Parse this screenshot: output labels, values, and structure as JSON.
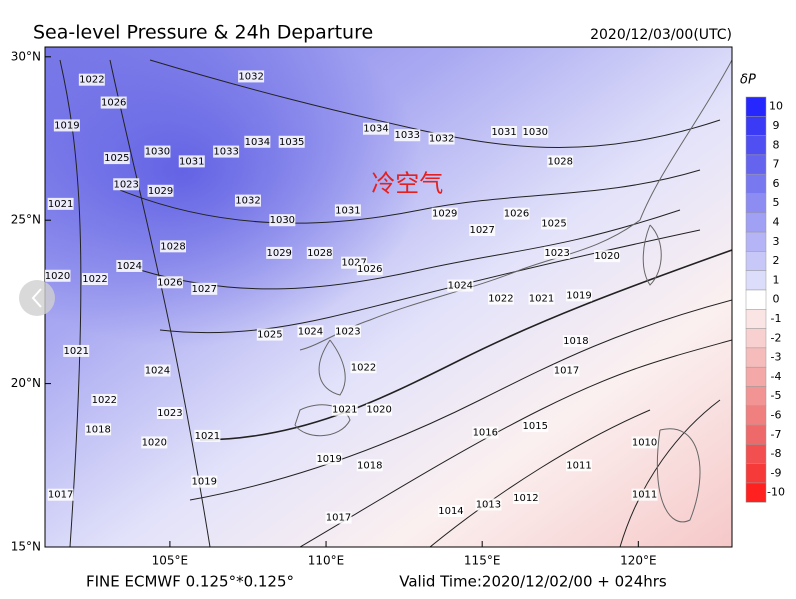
{
  "header": {
    "title": "Sea-level Pressure & 24h Departure",
    "time": "2020/12/03/00(UTC)"
  },
  "map": {
    "lon_range": [
      101,
      123
    ],
    "lat_range": [
      15,
      30.3
    ],
    "lon_ticks": [
      {
        "value": 105,
        "label": "105°E"
      },
      {
        "value": 110,
        "label": "110°E"
      },
      {
        "value": 115,
        "label": "115°E"
      },
      {
        "value": 120,
        "label": "120°E"
      }
    ],
    "lat_ticks": [
      {
        "value": 30,
        "label": "30°N"
      },
      {
        "value": 25,
        "label": "25°N"
      },
      {
        "value": 20,
        "label": "20°N"
      },
      {
        "value": 15,
        "label": "15°N"
      }
    ],
    "annotation": {
      "text": "冷空气",
      "lon": 112.6,
      "lat": 26.1
    },
    "contour_labels": [
      {
        "label": 1032,
        "lon": 107.6,
        "lat": 29.4
      },
      {
        "label": 1022,
        "lon": 102.5,
        "lat": 29.3
      },
      {
        "label": 1019,
        "lon": 101.7,
        "lat": 27.9
      },
      {
        "label": 1026,
        "lon": 103.2,
        "lat": 28.6
      },
      {
        "label": 1030,
        "lon": 104.6,
        "lat": 27.1
      },
      {
        "label": 1025,
        "lon": 103.3,
        "lat": 26.9
      },
      {
        "label": 1033,
        "lon": 106.8,
        "lat": 27.1
      },
      {
        "label": 1034,
        "lon": 107.8,
        "lat": 27.4
      },
      {
        "label": 1035,
        "lon": 108.9,
        "lat": 27.4
      },
      {
        "label": 1031,
        "lon": 105.7,
        "lat": 26.8
      },
      {
        "label": 1034,
        "lon": 111.6,
        "lat": 27.8
      },
      {
        "label": 1033,
        "lon": 112.6,
        "lat": 27.6
      },
      {
        "label": 1032,
        "lon": 113.7,
        "lat": 27.5
      },
      {
        "label": 1031,
        "lon": 115.7,
        "lat": 27.7
      },
      {
        "label": 1030,
        "lon": 116.7,
        "lat": 27.7
      },
      {
        "label": 1028,
        "lon": 117.5,
        "lat": 26.8
      },
      {
        "label": 1023,
        "lon": 103.6,
        "lat": 26.1
      },
      {
        "label": 1029,
        "lon": 104.7,
        "lat": 25.9
      },
      {
        "label": 1032,
        "lon": 107.5,
        "lat": 25.6
      },
      {
        "label": 1030,
        "lon": 108.6,
        "lat": 25.0
      },
      {
        "label": 1031,
        "lon": 110.7,
        "lat": 25.3
      },
      {
        "label": 1029,
        "lon": 113.8,
        "lat": 25.2
      },
      {
        "label": 1027,
        "lon": 115.0,
        "lat": 24.7
      },
      {
        "label": 1026,
        "lon": 116.1,
        "lat": 25.2
      },
      {
        "label": 1025,
        "lon": 117.3,
        "lat": 24.9
      },
      {
        "label": 1021,
        "lon": 101.5,
        "lat": 25.5
      },
      {
        "label": 1020,
        "lon": 101.4,
        "lat": 23.3
      },
      {
        "label": 1022,
        "lon": 102.6,
        "lat": 23.2
      },
      {
        "label": 1024,
        "lon": 103.7,
        "lat": 23.6
      },
      {
        "label": 1028,
        "lon": 105.1,
        "lat": 24.2
      },
      {
        "label": 1029,
        "lon": 108.5,
        "lat": 24.0
      },
      {
        "label": 1028,
        "lon": 109.8,
        "lat": 24.0
      },
      {
        "label": 1027,
        "lon": 110.9,
        "lat": 23.7
      },
      {
        "label": 1026,
        "lon": 111.4,
        "lat": 23.5
      },
      {
        "label": 1024,
        "lon": 114.3,
        "lat": 23.0
      },
      {
        "label": 1023,
        "lon": 117.4,
        "lat": 24.0
      },
      {
        "label": 1022,
        "lon": 115.6,
        "lat": 22.6
      },
      {
        "label": 1021,
        "lon": 116.9,
        "lat": 22.6
      },
      {
        "label": 1019,
        "lon": 118.1,
        "lat": 22.7
      },
      {
        "label": 1020,
        "lon": 119.0,
        "lat": 23.9
      },
      {
        "label": 1026,
        "lon": 105.0,
        "lat": 23.1
      },
      {
        "label": 1027,
        "lon": 106.1,
        "lat": 22.9
      },
      {
        "label": 1025,
        "lon": 108.2,
        "lat": 21.5
      },
      {
        "label": 1024,
        "lon": 109.5,
        "lat": 21.6
      },
      {
        "label": 1023,
        "lon": 110.7,
        "lat": 21.6
      },
      {
        "label": 1022,
        "lon": 111.2,
        "lat": 20.5
      },
      {
        "label": 1021,
        "lon": 102.0,
        "lat": 21.0
      },
      {
        "label": 1024,
        "lon": 104.6,
        "lat": 20.4
      },
      {
        "label": 1022,
        "lon": 102.9,
        "lat": 19.5
      },
      {
        "label": 1023,
        "lon": 105.0,
        "lat": 19.1
      },
      {
        "label": 1018,
        "lon": 102.7,
        "lat": 18.6
      },
      {
        "label": 1020,
        "lon": 104.5,
        "lat": 18.2
      },
      {
        "label": 1021,
        "lon": 106.2,
        "lat": 18.4
      },
      {
        "label": 1019,
        "lon": 106.1,
        "lat": 17.0
      },
      {
        "label": 1021,
        "lon": 110.6,
        "lat": 19.2
      },
      {
        "label": 1020,
        "lon": 111.7,
        "lat": 19.2
      },
      {
        "label": 1019,
        "lon": 110.1,
        "lat": 17.7
      },
      {
        "label": 1018,
        "lon": 111.4,
        "lat": 17.5
      },
      {
        "label": 1017,
        "lon": 110.4,
        "lat": 15.9
      },
      {
        "label": 1016,
        "lon": 115.1,
        "lat": 18.5
      },
      {
        "label": 1015,
        "lon": 116.7,
        "lat": 18.7
      },
      {
        "label": 1014,
        "lon": 114.0,
        "lat": 16.1
      },
      {
        "label": 1013,
        "lon": 115.2,
        "lat": 16.3
      },
      {
        "label": 1012,
        "lon": 116.4,
        "lat": 16.5
      },
      {
        "label": 1011,
        "lon": 118.1,
        "lat": 17.5
      },
      {
        "label": 1010,
        "lon": 120.2,
        "lat": 18.2
      },
      {
        "label": 1011,
        "lon": 120.2,
        "lat": 16.6
      },
      {
        "label": 1017,
        "lon": 117.7,
        "lat": 20.4
      },
      {
        "label": 1018,
        "lon": 118.0,
        "lat": 21.3
      },
      {
        "label": 1017,
        "lon": 101.5,
        "lat": 16.6
      }
    ]
  },
  "colorbar": {
    "title": "δP",
    "items": [
      {
        "value": 10,
        "color": "#2626ff"
      },
      {
        "value": 9,
        "color": "#3b3bf6"
      },
      {
        "value": 8,
        "color": "#4f4ff2"
      },
      {
        "value": 7,
        "color": "#6464ee"
      },
      {
        "value": 6,
        "color": "#7878f0"
      },
      {
        "value": 5,
        "color": "#8c8cf2"
      },
      {
        "value": 4,
        "color": "#a0a0f4"
      },
      {
        "value": 3,
        "color": "#b4b4f6"
      },
      {
        "value": 2,
        "color": "#c8c8f8"
      },
      {
        "value": 1,
        "color": "#dcdcfb"
      },
      {
        "value": 0,
        "color": "#ffffff"
      },
      {
        "value": -1,
        "color": "#fbe4e4"
      },
      {
        "value": -2,
        "color": "#f8d0d0"
      },
      {
        "value": -3,
        "color": "#f6bcbc"
      },
      {
        "value": -4,
        "color": "#f4a8a8"
      },
      {
        "value": -5,
        "color": "#f29494"
      },
      {
        "value": -6,
        "color": "#f08080"
      },
      {
        "value": -7,
        "color": "#ee6a6a"
      },
      {
        "value": -8,
        "color": "#f25050"
      },
      {
        "value": -9,
        "color": "#f63a3a"
      },
      {
        "value": -10,
        "color": "#ff2020"
      }
    ]
  },
  "footer": {
    "left": "FINE ECMWF 0.125°*0.125°",
    "right": "Valid Time:2020/12/02/00 + 024hrs"
  }
}
